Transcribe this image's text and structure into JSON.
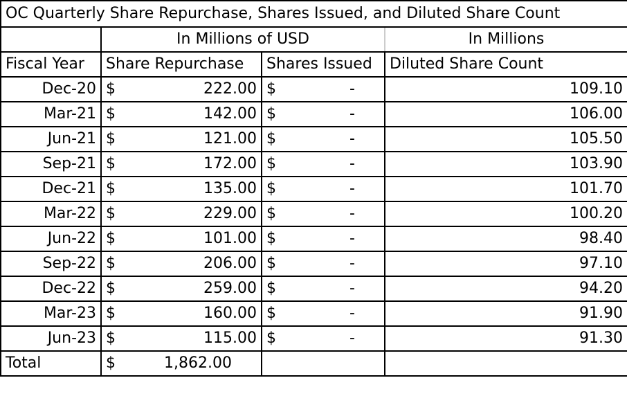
{
  "chart_data": {
    "type": "table",
    "title": "OC Quarterly Share Repurchase, Shares Issued, and Diluted Share Count",
    "group_headers": [
      "In Millions of USD",
      "In Millions"
    ],
    "columns": [
      "Fiscal Year",
      "Share Repurchase",
      "Shares Issued",
      "Diluted Share Count"
    ],
    "currency_symbol": "$",
    "rows": [
      {
        "period": "Dec-20",
        "repurchase": "222.00",
        "issued": "-",
        "diluted": "109.10"
      },
      {
        "period": "Mar-21",
        "repurchase": "142.00",
        "issued": "-",
        "diluted": "106.00"
      },
      {
        "period": "Jun-21",
        "repurchase": "121.00",
        "issued": "-",
        "diluted": "105.50"
      },
      {
        "period": "Sep-21",
        "repurchase": "172.00",
        "issued": "-",
        "diluted": "103.90"
      },
      {
        "period": "Dec-21",
        "repurchase": "135.00",
        "issued": "-",
        "diluted": "101.70"
      },
      {
        "period": "Mar-22",
        "repurchase": "229.00",
        "issued": "-",
        "diluted": "100.20"
      },
      {
        "period": "Jun-22",
        "repurchase": "101.00",
        "issued": "-",
        "diluted": "98.40"
      },
      {
        "period": "Sep-22",
        "repurchase": "206.00",
        "issued": "-",
        "diluted": "97.10"
      },
      {
        "period": "Dec-22",
        "repurchase": "259.00",
        "issued": "-",
        "diluted": "94.20"
      },
      {
        "period": "Mar-23",
        "repurchase": "160.00",
        "issued": "-",
        "diluted": "91.90"
      },
      {
        "period": "Jun-23",
        "repurchase": "115.00",
        "issued": "-",
        "diluted": "91.30"
      }
    ],
    "total": {
      "label": "Total",
      "repurchase": "1,862.00"
    }
  }
}
